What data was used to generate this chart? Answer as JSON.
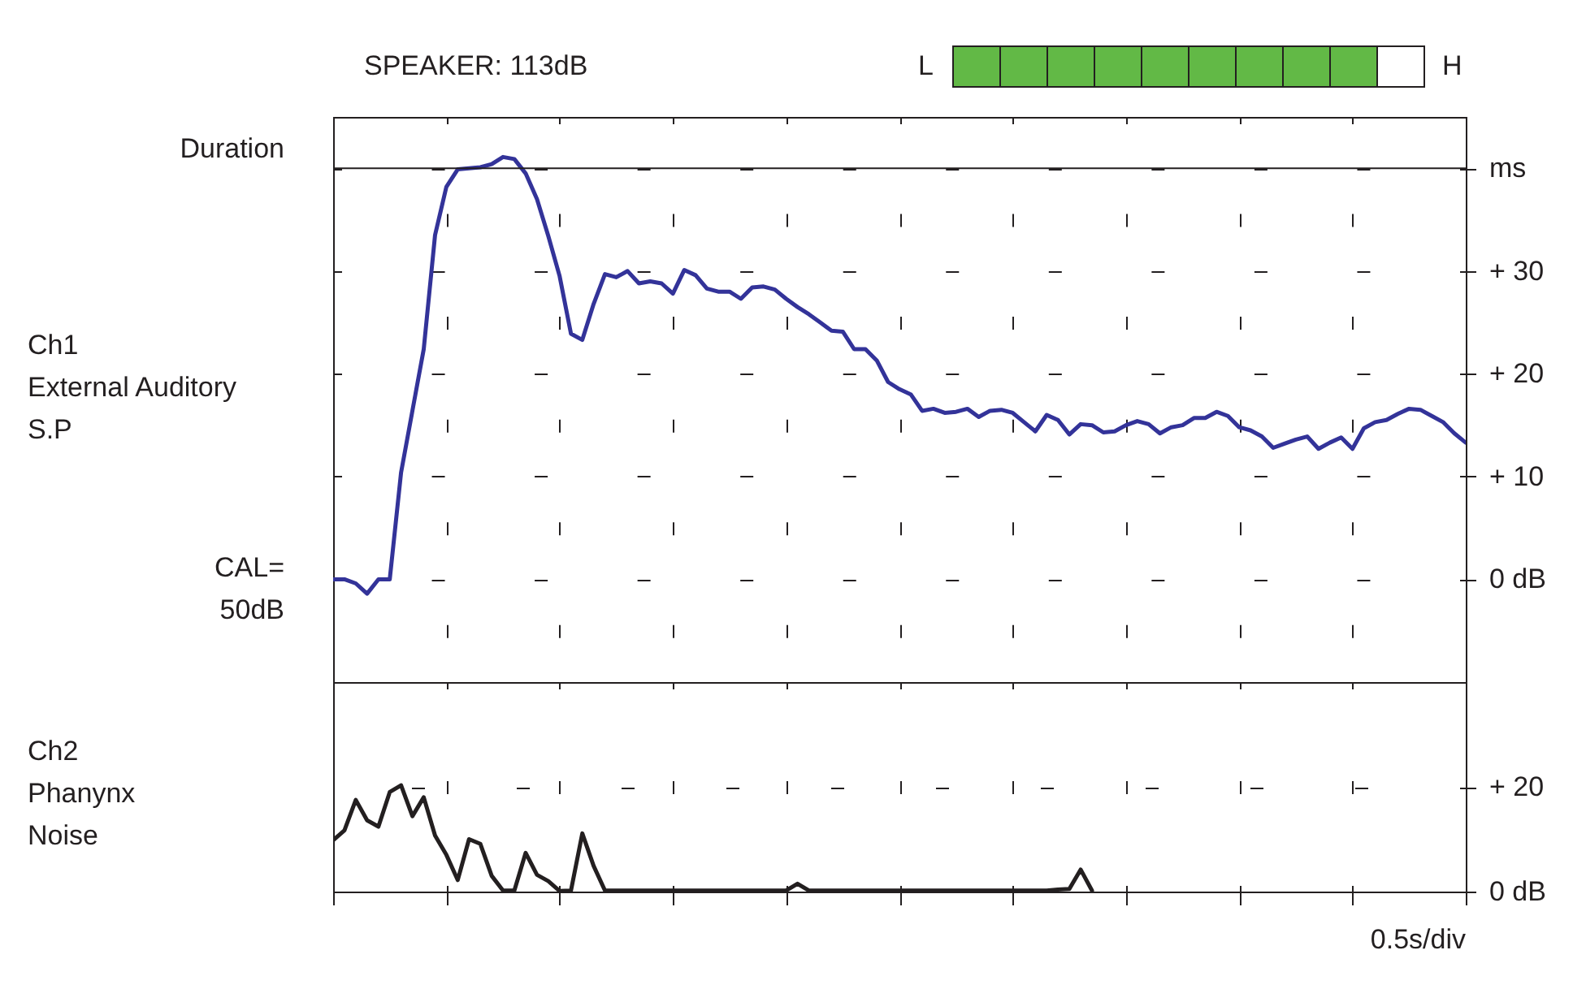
{
  "chart_data": [
    {
      "type": "line",
      "title": "SPEAKER: 113dB",
      "ylabel": "Ch1\nExternal Auditory\nS.P",
      "annotations": [
        "Duration",
        "CAL=\n50dB",
        "L",
        "H"
      ],
      "categories": [
        null,
        null,
        null,
        null,
        null,
        null,
        null,
        null,
        null,
        null,
        null,
        null,
        null,
        null,
        null,
        null,
        null,
        null,
        null,
        null,
        null,
        null,
        null,
        null,
        null,
        null,
        null,
        null,
        null,
        null,
        null,
        null,
        null,
        null,
        null,
        null,
        null,
        null,
        null,
        null,
        null,
        null,
        null,
        null,
        null,
        null,
        null,
        null,
        null,
        null,
        null,
        null,
        null,
        null,
        null,
        null,
        null,
        null,
        null,
        null,
        null,
        null,
        null,
        null,
        null,
        null,
        null,
        null,
        null,
        null,
        null,
        null,
        null,
        null,
        null,
        null,
        null,
        null,
        null,
        null,
        null,
        null,
        null,
        null,
        null,
        null,
        null,
        null,
        null,
        null,
        null,
        null,
        null,
        null,
        null,
        null,
        null,
        null,
        null,
        null,
        null
      ],
      "ylim": [
        -10,
        45
      ],
      "yticks": [
        {
          "value": 0,
          "label": "0 dB"
        },
        {
          "value": 10,
          "label": "+ 10"
        },
        {
          "value": 20,
          "label": "+ 20"
        },
        {
          "value": 30,
          "label": "+ 30"
        },
        {
          "value": 40,
          "label": "ms"
        }
      ],
      "tick_labels": "y",
      "grid": true,
      "ref_lines": [
        {
          "axis": "y",
          "value": 40,
          "color": "#231f20"
        }
      ],
      "series": [
        {
          "color": "#333399",
          "values": [
            0,
            0,
            -0.4,
            -1.4,
            0,
            0,
            10.4,
            16.4,
            22.4,
            33.5,
            38.2,
            39.9,
            40.0,
            40.1,
            40.4,
            41.1,
            40.9,
            39.5,
            37.0,
            33.4,
            29.5,
            23.9,
            23.3,
            26.8,
            29.7,
            29.4,
            30,
            28.8,
            29.0,
            28.8,
            27.8,
            30.1,
            29.6,
            28.3,
            28.0,
            28.0,
            27.3,
            28.4,
            28.5,
            28.2,
            27.3,
            26.5,
            25.8,
            25.0,
            24.2,
            24.1,
            22.4,
            22.4,
            21.3,
            19.2,
            18.5,
            18.0,
            16.4,
            16.6,
            16.2,
            16.3,
            16.6,
            15.8,
            16.4,
            16.5,
            16.2,
            15.3,
            14.4,
            16.0,
            15.5,
            14.1,
            15.1,
            15.0,
            14.3,
            14.4,
            15.0,
            15.4,
            15.1,
            14.2,
            14.8,
            15.0,
            15.7,
            15.7,
            16.3,
            15.9,
            14.8,
            14.5,
            13.9,
            12.8,
            13.2,
            13.6,
            13.9,
            12.7,
            13.3,
            13.8,
            12.7,
            14.7,
            15.3,
            15.5,
            16.1,
            16.6,
            16.5,
            15.9,
            15.3,
            14.2,
            13.3
          ]
        }
      ]
    },
    {
      "type": "line",
      "ylabel": "Ch2\nPhanynx\nNoise",
      "annotations": [
        "0.5s/div"
      ],
      "categories": [
        null,
        null,
        null,
        null,
        null,
        null,
        null,
        null,
        null,
        null,
        null,
        null,
        null,
        null,
        null,
        null,
        null,
        null,
        null,
        null,
        null,
        null,
        null,
        null,
        null,
        null,
        null,
        null,
        null,
        null,
        null,
        null,
        null,
        null,
        null,
        null,
        null,
        null,
        null,
        null,
        null,
        null,
        null,
        null,
        null,
        null,
        null,
        null,
        null,
        null,
        null,
        null,
        null,
        null,
        null,
        null,
        null,
        null,
        null,
        null,
        null,
        null,
        null,
        null,
        null,
        null,
        null,
        null,
        null,
        null,
        null,
        null,
        null,
        null,
        null,
        null,
        null,
        null,
        null,
        null,
        null,
        null,
        null,
        null,
        null,
        null,
        null,
        null,
        null,
        null,
        null,
        null,
        null,
        null,
        null,
        null,
        null,
        null,
        null,
        null,
        null
      ],
      "ylim": [
        0,
        40
      ],
      "yticks": [
        {
          "value": 0,
          "label": "0 dB"
        },
        {
          "value": 20,
          "label": "+ 20"
        }
      ],
      "tick_labels": "y",
      "grid": true,
      "series": [
        {
          "color": "#231f20",
          "values": [
            9.8,
            11.7,
            17.5,
            13.6,
            12.4,
            19.0,
            20.3,
            14.4,
            18.0,
            10.7,
            7.0,
            2.2,
            10.0,
            9.1,
            3.0,
            0.2,
            0.2,
            7.4,
            3.2,
            2.0,
            0.1,
            0.2,
            11.1,
            4.9,
            0.2,
            0.2,
            0.2,
            0.2,
            0.2,
            0.2,
            0.2,
            0.2,
            0.2,
            0.2,
            0.2,
            0.2,
            0.2,
            0.2,
            0.2,
            0.2,
            0.2,
            1.5,
            0.2,
            0.2,
            0.2,
            0.2,
            0.2,
            0.2,
            0.2,
            0.2,
            0.2,
            0.2,
            0.2,
            0.2,
            0.2,
            0.2,
            0.2,
            0.2,
            0.2,
            0.2,
            0.2,
            0.2,
            0.2,
            0.2,
            0.4,
            0.5,
            4.2,
            0.2,
            null,
            null,
            null,
            null,
            null,
            null,
            null,
            null,
            null,
            null,
            null,
            null,
            null,
            null,
            null,
            null,
            null,
            null,
            null,
            null,
            null,
            null,
            null,
            null,
            null,
            null,
            null,
            null,
            null,
            null,
            null,
            null,
            null
          ]
        }
      ]
    }
  ]
}
